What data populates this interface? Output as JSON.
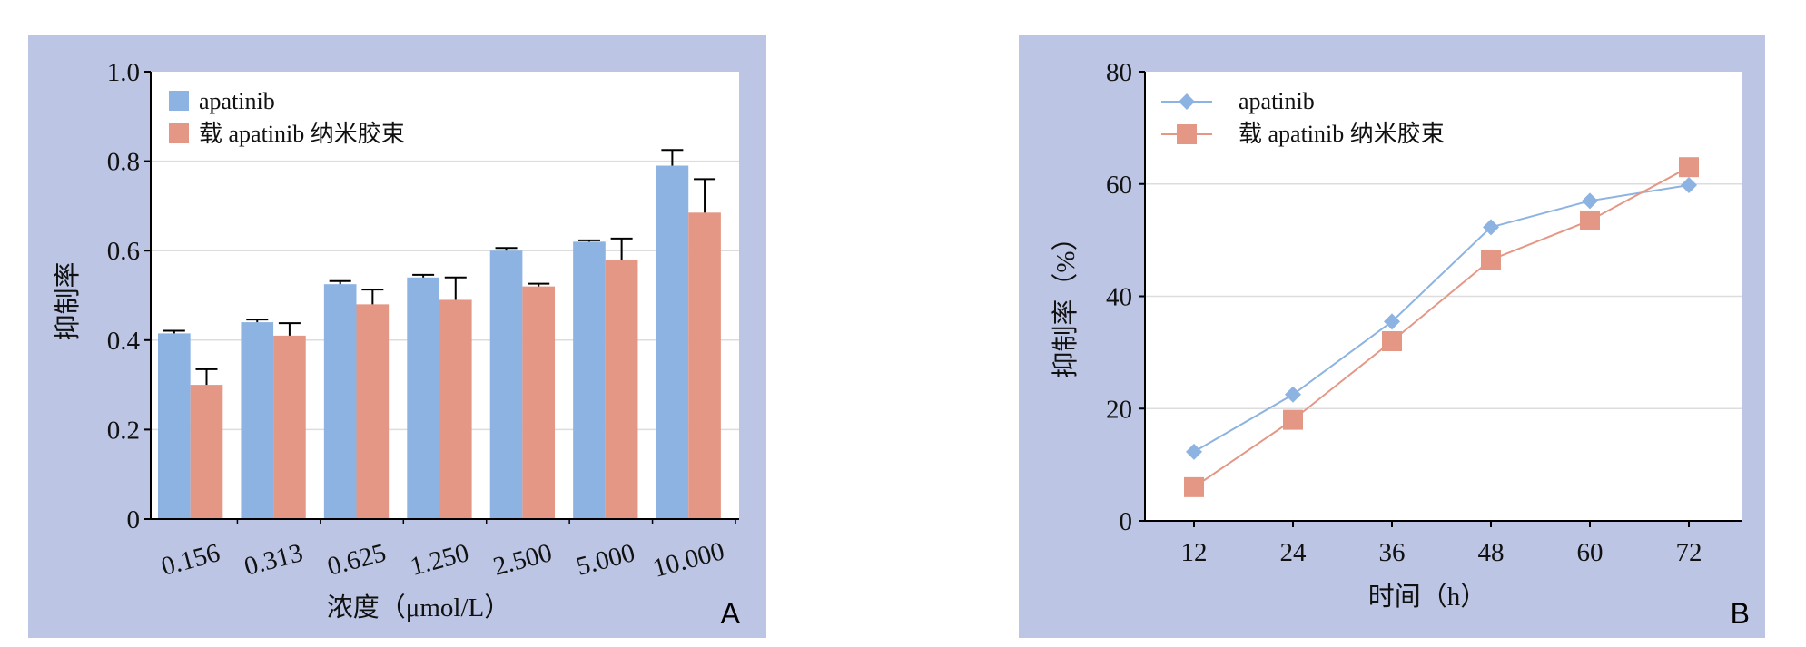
{
  "chart_data": [
    {
      "type": "bar",
      "panel_label": "A",
      "xlabel": "浓度（μmol/L）",
      "ylabel": "抑制率",
      "categories": [
        "0.156",
        "0.313",
        "0.625",
        "1.250",
        "2.500",
        "5.000",
        "10.000"
      ],
      "yticks": [
        "0",
        "0.2",
        "0.4",
        "0.6",
        "0.8",
        "1.0"
      ],
      "ylim": [
        0,
        1.0
      ],
      "grid": true,
      "legend_position": "top-left",
      "series": [
        {
          "name": "apatinib",
          "color": "#8db3e2",
          "values": [
            0.415,
            0.44,
            0.525,
            0.54,
            0.6,
            0.62,
            0.79
          ],
          "errors": [
            0.006,
            0.006,
            0.007,
            0.006,
            0.006,
            0.003,
            0.035
          ]
        },
        {
          "name": "载 apatinib 纳米胶束",
          "color": "#e59785",
          "values": [
            0.3,
            0.41,
            0.48,
            0.49,
            0.52,
            0.58,
            0.685
          ],
          "errors": [
            0.035,
            0.028,
            0.033,
            0.05,
            0.006,
            0.047,
            0.075
          ]
        }
      ]
    },
    {
      "type": "line",
      "panel_label": "B",
      "xlabel": "时间（h）",
      "ylabel": "抑制率（%）",
      "x": [
        12,
        24,
        36,
        48,
        60,
        72
      ],
      "xticks": [
        "12",
        "24",
        "36",
        "48",
        "60",
        "72"
      ],
      "yticks": [
        "0",
        "20",
        "40",
        "60",
        "80"
      ],
      "ylim": [
        0,
        80
      ],
      "grid": true,
      "legend_position": "top-left",
      "series": [
        {
          "name": "apatinib",
          "color": "#8db3e2",
          "marker": "diamond",
          "values": [
            12.3,
            22.5,
            35.5,
            52.3,
            57.0,
            59.8
          ]
        },
        {
          "name": "载 apatinib 纳米胶束",
          "color": "#e59785",
          "marker": "square",
          "values": [
            6.0,
            18.0,
            32.0,
            46.5,
            53.5,
            63.0
          ]
        }
      ]
    }
  ]
}
